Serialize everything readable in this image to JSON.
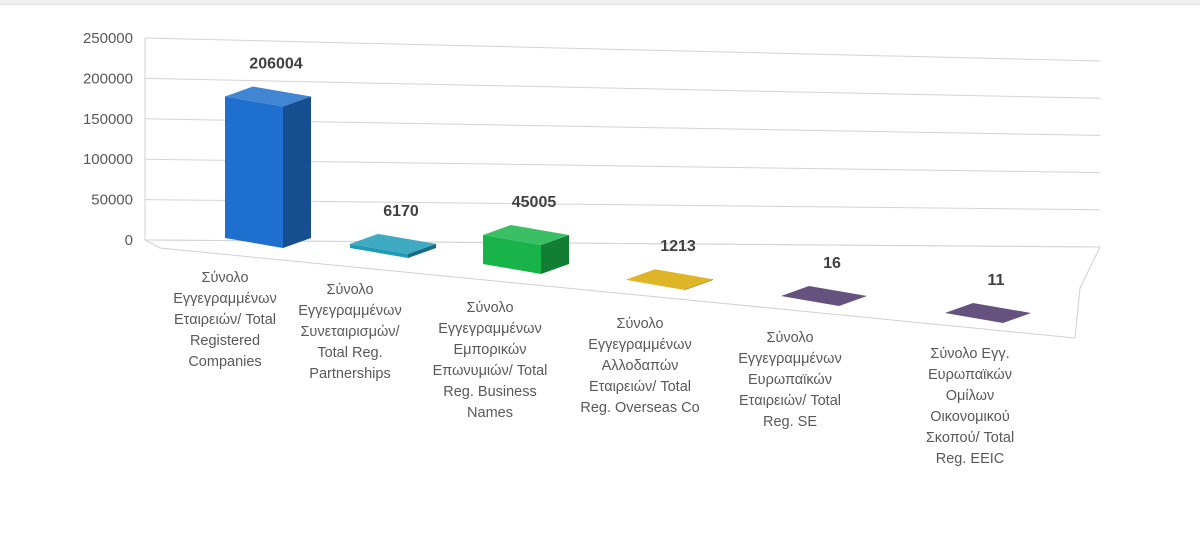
{
  "chart_data": {
    "type": "bar",
    "title": "",
    "xlabel": "",
    "ylabel": "",
    "ylim": [
      0,
      250000
    ],
    "yticks": [
      0,
      50000,
      100000,
      150000,
      200000,
      250000
    ],
    "grid": true,
    "legend": "none",
    "style": "3d-column",
    "categories": [
      [
        "Σύνολο",
        "Εγγεγραμμένων",
        "Εταιρειών/ Total",
        "Registered",
        "Companies"
      ],
      [
        "Σύνολο",
        "Εγγεγραμμένων",
        "Συνεταιρισμών/",
        "Total Reg.",
        "Partnerships"
      ],
      [
        "Σύνολο",
        "Εγγεγραμμένων",
        "Εμπορικών",
        "Επωνυμιών/ Total",
        "Reg. Business",
        "Names"
      ],
      [
        "Σύνολο",
        "Εγγεγραμμένων",
        "Αλλοδαπών",
        "Εταιρειών/ Total",
        "Reg. Overseas Co"
      ],
      [
        "Σύνολο",
        "Εγγεγραμμένων",
        "Ευρωπαϊκών",
        "Εταιρειών/ Total",
        "Reg. SE"
      ],
      [
        "Σύνολο Εγγ.",
        "Ευρωπαϊκών",
        "Ομίλων",
        "Οικονομικού",
        "Σκοπού/ Total",
        "Reg. EEIC"
      ]
    ],
    "values": [
      206004,
      6170,
      45005,
      1213,
      16,
      11
    ],
    "colors": [
      "#1f6fce",
      "#1f9bb8",
      "#18b44a",
      "#d8a800",
      "#4a3468",
      "#4a3468"
    ]
  }
}
